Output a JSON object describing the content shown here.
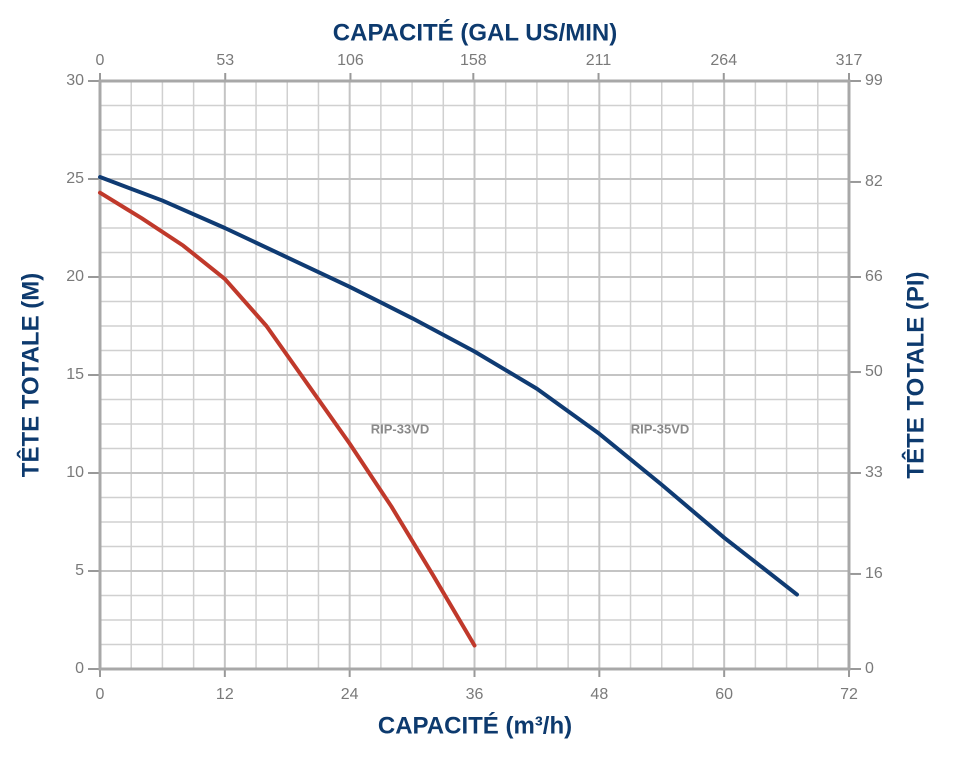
{
  "chart_data": {
    "type": "line",
    "title": "CAPACITÉ (GAL US/MIN)",
    "xlabel": "CAPACITÉ (m³/h)",
    "ylabel": "TÊTE TOTALE (M)",
    "y2label": "TÊTE TOTALE (PI)",
    "xlim": [
      0,
      72
    ],
    "xticks": [
      0,
      12,
      24,
      36,
      48,
      60,
      72
    ],
    "x2lim": [
      0,
      317
    ],
    "x2ticks": [
      0,
      53,
      106,
      158,
      211,
      264,
      317
    ],
    "ylim": [
      0,
      30
    ],
    "yticks": [
      0,
      5,
      10,
      15,
      20,
      25,
      30
    ],
    "y2lim": [
      0,
      99
    ],
    "y2ticks": [
      0,
      16,
      33,
      50,
      66,
      82,
      99
    ],
    "grid": true,
    "minor_divisions": 4,
    "series": [
      {
        "name": "RIP-33VD",
        "color": "#c0392b",
        "x": [
          0,
          4,
          8,
          12,
          16,
          20,
          24,
          28,
          32,
          36
        ],
        "values": [
          24.3,
          23.0,
          21.6,
          19.9,
          17.5,
          14.5,
          11.5,
          8.3,
          4.8,
          1.2
        ]
      },
      {
        "name": "RIP-35VD",
        "color": "#0f3b73",
        "x": [
          0,
          6,
          12,
          18,
          24,
          30,
          36,
          42,
          48,
          54,
          60,
          67
        ],
        "values": [
          25.1,
          23.9,
          22.5,
          21.0,
          19.5,
          17.9,
          16.2,
          14.3,
          12.0,
          9.4,
          6.7,
          3.8
        ]
      }
    ]
  }
}
